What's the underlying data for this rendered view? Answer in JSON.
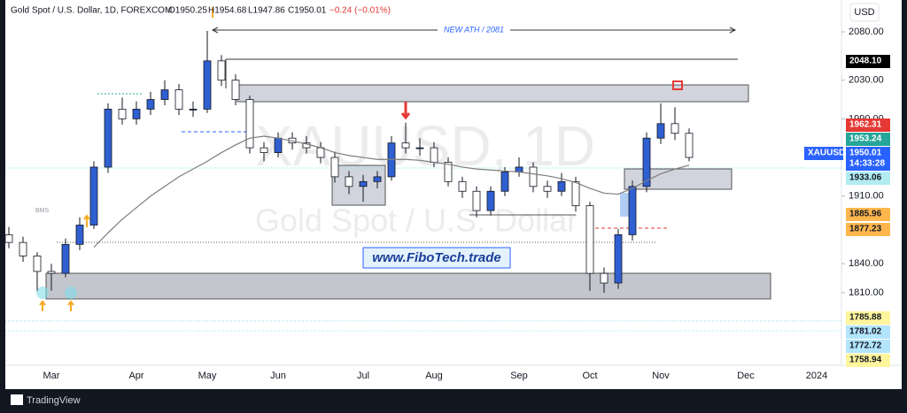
{
  "chart_data": {
    "type": "candlestick",
    "title": "Gold Spot / U.S. Dollar, 1D, FOREXCOM",
    "legend_values": [
      "O1950.25",
      "H1954.68",
      "L1947.86",
      "C1950.01",
      "−0.24 (−0.01%)"
    ],
    "currency": "USD",
    "watermark": [
      "XAUUSD, 1D",
      "Gold Spot / U.S. Dollar"
    ],
    "annotations": [
      "NEW ATH / 2081",
      "www.FiboTech.trade",
      "BMS"
    ],
    "brand": "TradingView",
    "up_color": "#2f5fd0",
    "down_color": "#ffffff",
    "categories": [
      null,
      null,
      null,
      "Mar",
      null,
      null,
      null,
      null,
      null,
      "Apr",
      null,
      null,
      null,
      null,
      "May",
      null,
      null,
      null,
      null,
      "Jun",
      null,
      null,
      null,
      null,
      null,
      "Jul",
      null,
      null,
      null,
      null,
      "Aug",
      null,
      null,
      null,
      null,
      null,
      "Sep",
      null,
      null,
      null,
      null,
      "Oct",
      null,
      null,
      null,
      null,
      "Nov",
      null,
      null,
      null,
      null,
      null,
      "Dec",
      null,
      null,
      null,
      null,
      "2024"
    ],
    "open": [
      1870,
      1862,
      1848,
      1832,
      1830,
      1860,
      1880,
      1940,
      2000,
      1990,
      2000,
      2010,
      2020,
      2000,
      2000,
      2050,
      2030,
      2010,
      1960,
      1955,
      1970,
      1965,
      1960,
      1950,
      1930,
      1920,
      1925,
      1930,
      1965,
      1960,
      1960,
      1945,
      1925,
      1915,
      1895,
      1915,
      1935,
      1940,
      1920,
      1915,
      1925,
      1900,
      1830,
      1820,
      1870,
      1920,
      1970,
      1985,
      1975,
      null,
      null,
      null,
      null,
      null,
      null,
      null,
      null,
      null
    ],
    "high": [
      1878,
      1868,
      1852,
      1840,
      1866,
      1888,
      1946,
      2006,
      2012,
      2008,
      2018,
      2030,
      2026,
      2008,
      2081,
      2056,
      2036,
      2014,
      1966,
      1976,
      1976,
      1972,
      1966,
      1956,
      1936,
      1932,
      1936,
      1972,
      1986,
      1970,
      1966,
      1950,
      1930,
      1920,
      1920,
      1940,
      1950,
      1945,
      1926,
      1934,
      1930,
      1904,
      1836,
      1876,
      1926,
      1976,
      2006,
      2002,
      1980,
      null,
      null,
      null,
      null,
      null,
      null,
      null,
      null,
      null
    ],
    "low": [
      1856,
      1842,
      1812,
      1812,
      1826,
      1854,
      1876,
      1934,
      1984,
      1984,
      1994,
      2004,
      1994,
      1992,
      1996,
      2024,
      2004,
      1954,
      1946,
      1950,
      1958,
      1954,
      1944,
      1924,
      1912,
      1904,
      1918,
      1926,
      1954,
      1952,
      1940,
      1920,
      1908,
      1888,
      1890,
      1910,
      1930,
      1914,
      1908,
      1910,
      1894,
      1812,
      1810,
      1814,
      1864,
      1914,
      1964,
      1968,
      1946,
      null,
      null,
      null,
      null,
      null,
      null,
      null,
      null,
      null
    ],
    "close": [
      1862,
      1848,
      1832,
      1830,
      1860,
      1880,
      1940,
      2000,
      1990,
      2000,
      2010,
      2020,
      2000,
      2000,
      2050,
      2030,
      2010,
      1960,
      1955,
      1970,
      1965,
      1960,
      1950,
      1930,
      1920,
      1925,
      1930,
      1965,
      1960,
      1960,
      1945,
      1925,
      1915,
      1895,
      1915,
      1935,
      1940,
      1920,
      1915,
      1925,
      1900,
      1830,
      1820,
      1870,
      1920,
      1970,
      1985,
      1975,
      1950,
      null,
      null,
      null,
      null,
      null,
      null,
      null,
      null,
      null
    ],
    "overlay": {
      "color": "#7d7d7d",
      "values": [
        null,
        null,
        null,
        null,
        null,
        null,
        1857,
        1872,
        1886,
        1898,
        1910,
        1920,
        1930,
        1938,
        1946,
        1955,
        1963,
        1970,
        1972,
        1970,
        1967,
        1964,
        1960,
        1955,
        1952,
        1950,
        1948,
        1948,
        1948,
        1947,
        1945,
        1943,
        1940,
        1938,
        1937,
        1936,
        1935,
        1933,
        1931,
        1928,
        1924,
        1918,
        1913,
        1912,
        1918,
        1926,
        1933,
        1938,
        1942,
        null,
        null,
        null,
        null,
        null,
        null,
        null,
        null,
        null
      ]
    },
    "ylim": [
      1712,
      2113
    ],
    "yticks": [
      {
        "value": 2080,
        "label": "2080.00"
      },
      {
        "value": 2030,
        "label": "2030.00"
      },
      {
        "value": 1990,
        "label": "1990.00"
      },
      {
        "value": 1910,
        "label": "1910.00"
      },
      {
        "value": 1840,
        "label": "1840.00"
      },
      {
        "value": 1810,
        "label": "1810.00"
      }
    ],
    "price_tags": [
      {
        "label": "2048.10",
        "color": "#000000",
        "text_color": "#ffffff"
      },
      {
        "label": "1962.31",
        "color": "#e53935",
        "text_color": "#ffffff"
      },
      {
        "label": "1953.24",
        "color": "#26a69a",
        "text_color": "#ffffff"
      },
      {
        "label": "XAUUSD",
        "color": "#2962ff",
        "text_color": "#ffffff"
      },
      {
        "label": "1950.01",
        "color": "#2962ff",
        "text_color": "#ffffff"
      },
      {
        "label": "14:33:28",
        "color": "#2962ff",
        "text_color": "#ffffff"
      },
      {
        "label": "1933.06",
        "color": "#b2ebf2",
        "text_color": "#131722"
      },
      {
        "label": "1885.96",
        "color": "#ffb74d",
        "text_color": "#131722"
      },
      {
        "label": "1877.23",
        "color": "#ffb74d",
        "text_color": "#131722"
      },
      {
        "label": "1785.88",
        "color": "#fff59d",
        "text_color": "#131722"
      },
      {
        "label": "1781.02",
        "color": "#b3e5fc",
        "text_color": "#131722"
      },
      {
        "label": "1772.72",
        "color": "#b3e5fc",
        "text_color": "#131722"
      },
      {
        "label": "1758.94",
        "color": "#fff59d",
        "text_color": "#131722"
      }
    ]
  }
}
